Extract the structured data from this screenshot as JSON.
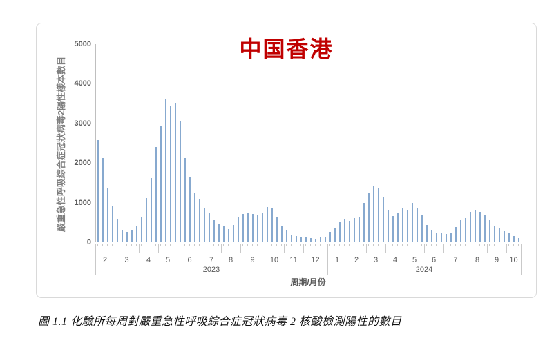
{
  "chart": {
    "title": "中国香港",
    "title_color": "#C00000",
    "bar_color": "#87A9CF",
    "axis_color": "#BFBFBF",
    "label_color": "#595959",
    "x_axis_title": "周期/月份",
    "y_axis_title": "嚴重急性呼吸綜合症冠狀病毒2陽性樣本數目"
  },
  "caption": "圖 1.1 化驗所每周對嚴重急性呼吸綜合症冠狀病毒 2 核酸檢測陽性的數目",
  "chart_data": {
    "type": "bar",
    "title": "中国香港",
    "xlabel": "周期/月份",
    "ylabel": "嚴重急性呼吸綜合症冠狀病毒2陽性樣本數目",
    "ylim": [
      0,
      5000
    ],
    "y_ticks": [
      0,
      1000,
      2000,
      3000,
      4000,
      5000
    ],
    "grid": false,
    "legend": "none",
    "unit": "weekly positive SARS-CoV-2 NAT samples",
    "years": [
      {
        "label": "2023",
        "months": [
          {
            "label": "2",
            "values": [
              2570,
              2120,
              1370,
              930
            ]
          },
          {
            "label": "3",
            "values": [
              580,
              320,
              260,
              290,
              420
            ]
          },
          {
            "label": "4",
            "values": [
              640,
              1110,
              1620,
              2400
            ]
          },
          {
            "label": "5",
            "values": [
              2930,
              3630,
              3430,
              3520
            ]
          },
          {
            "label": "6",
            "values": [
              3050,
              2130,
              1650,
              1230,
              1090
            ]
          },
          {
            "label": "7",
            "values": [
              860,
              740,
              560,
              470
            ]
          },
          {
            "label": "8",
            "values": [
              420,
              330,
              435,
              640
            ]
          },
          {
            "label": "9",
            "values": [
              710,
              740,
              710,
              680,
              755
            ]
          },
          {
            "label": "10",
            "values": [
              880,
              870,
              620,
              410
            ]
          },
          {
            "label": "11",
            "values": [
              290,
              200,
              165,
              145
            ]
          },
          {
            "label": "12",
            "values": [
              115,
              105,
              90,
              115,
              145
            ]
          }
        ]
      },
      {
        "label": "2024",
        "months": [
          {
            "label": "1",
            "values": [
              260,
              350,
              510,
              590
            ]
          },
          {
            "label": "2",
            "values": [
              520,
              610,
              640,
              1000
            ]
          },
          {
            "label": "3",
            "values": [
              1260,
              1430,
              1370,
              1140
            ]
          },
          {
            "label": "4",
            "values": [
              820,
              670,
              730,
              850
            ]
          },
          {
            "label": "5",
            "values": [
              820,
              1000,
              850,
              700
            ]
          },
          {
            "label": "6",
            "values": [
              440,
              320,
              230,
              220
            ]
          },
          {
            "label": "7",
            "values": [
              210,
              240,
              380,
              560,
              610
            ]
          },
          {
            "label": "8",
            "values": [
              760,
              800,
              760,
              700
            ]
          },
          {
            "label": "9",
            "values": [
              550,
              410,
              350,
              280
            ]
          },
          {
            "label": "10",
            "values": [
              220,
              160,
              110
            ]
          }
        ]
      }
    ]
  }
}
